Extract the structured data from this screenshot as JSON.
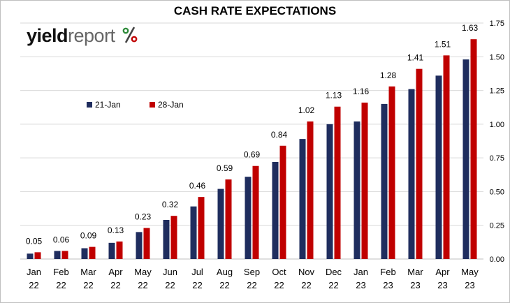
{
  "chart_data": {
    "type": "bar",
    "title": "CASH RATE EXPECTATIONS",
    "logo": {
      "part1": "yield",
      "part2": "report",
      "symbol": "%"
    },
    "categories": [
      [
        "Jan",
        "22"
      ],
      [
        "Feb",
        "22"
      ],
      [
        "Mar",
        "22"
      ],
      [
        "Apr",
        "22"
      ],
      [
        "May",
        "22"
      ],
      [
        "Jun",
        "22"
      ],
      [
        "Jul",
        "22"
      ],
      [
        "Aug",
        "22"
      ],
      [
        "Sep",
        "22"
      ],
      [
        "Oct",
        "22"
      ],
      [
        "Nov",
        "22"
      ],
      [
        "Dec",
        "22"
      ],
      [
        "Jan",
        "23"
      ],
      [
        "Feb",
        "23"
      ],
      [
        "Mar",
        "23"
      ],
      [
        "Apr",
        "23"
      ],
      [
        "May",
        "23"
      ]
    ],
    "series": [
      {
        "name": "21-Jan",
        "color": "#1f2d5e",
        "values": [
          0.04,
          0.06,
          0.08,
          0.12,
          0.2,
          0.29,
          0.39,
          0.52,
          0.61,
          0.72,
          0.89,
          1.0,
          1.02,
          1.15,
          1.26,
          1.36,
          1.48
        ],
        "show_labels": false
      },
      {
        "name": "28-Jan",
        "color": "#c00000",
        "values": [
          0.05,
          0.06,
          0.09,
          0.13,
          0.23,
          0.32,
          0.46,
          0.59,
          0.69,
          0.84,
          1.02,
          1.13,
          1.16,
          1.28,
          1.41,
          1.51,
          1.63
        ],
        "show_labels": true
      }
    ],
    "data_labels": [
      "0.05",
      "0.06",
      "0.09",
      "0.13",
      "0.23",
      "0.32",
      "0.46",
      "0.59",
      "0.69",
      "0.84",
      "1.02",
      "1.13",
      "1.16",
      "1.28",
      "1.41",
      "1.51",
      "1.63"
    ],
    "yaxis": {
      "position": "right",
      "ylim": [
        0,
        1.75
      ],
      "ticks": [
        "0.00",
        "0.25",
        "0.50",
        "0.75",
        "1.00",
        "1.25",
        "1.50",
        "1.75"
      ]
    },
    "grid": "horizontal",
    "legend_position": "upper-left"
  }
}
